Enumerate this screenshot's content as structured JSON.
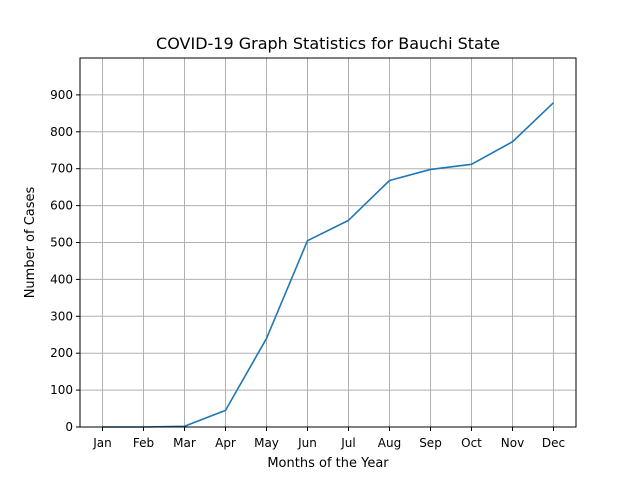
{
  "chart_data": {
    "type": "line",
    "title": "COVID-19 Graph Statistics for Bauchi State",
    "xlabel": "Months of the Year",
    "ylabel": "Number of Cases",
    "categories": [
      "Jan",
      "Feb",
      "Mar",
      "Apr",
      "May",
      "Jun",
      "Jul",
      "Aug",
      "Sep",
      "Oct",
      "Nov",
      "Dec"
    ],
    "series": [
      {
        "values": [
          0,
          0,
          2,
          45,
          240,
          505,
          560,
          668,
          698,
          712,
          773,
          879
        ]
      }
    ],
    "ylim": [
      0,
      1000
    ],
    "yticks": [
      0,
      100,
      200,
      300,
      400,
      500,
      600,
      700,
      800,
      900
    ],
    "grid": true,
    "line_color": "#1f77b4"
  }
}
